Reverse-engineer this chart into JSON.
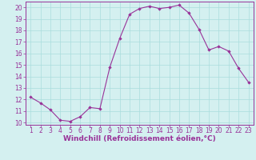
{
  "x": [
    1,
    2,
    3,
    4,
    5,
    6,
    7,
    8,
    9,
    10,
    11,
    12,
    13,
    14,
    15,
    16,
    17,
    18,
    19,
    20,
    21,
    22,
    23
  ],
  "y": [
    12.2,
    11.7,
    11.1,
    10.2,
    10.1,
    10.5,
    11.3,
    11.2,
    14.8,
    17.3,
    19.4,
    19.9,
    20.1,
    19.9,
    20.0,
    20.2,
    19.5,
    18.1,
    16.3,
    16.6,
    16.2,
    14.7,
    13.5
  ],
  "line_color": "#993399",
  "marker_color": "#993399",
  "bg_color": "#d4f0f0",
  "grid_color": "#aadddd",
  "axis_color": "#993399",
  "xlabel": "Windchill (Refroidissement éolien,°C)",
  "xlim": [
    0.5,
    23.5
  ],
  "ylim": [
    9.8,
    20.5
  ],
  "xticks": [
    1,
    2,
    3,
    4,
    5,
    6,
    7,
    8,
    9,
    10,
    11,
    12,
    13,
    14,
    15,
    16,
    17,
    18,
    19,
    20,
    21,
    22,
    23
  ],
  "yticks": [
    10,
    11,
    12,
    13,
    14,
    15,
    16,
    17,
    18,
    19,
    20
  ],
  "tick_fontsize": 5.5,
  "label_fontsize": 6.5
}
